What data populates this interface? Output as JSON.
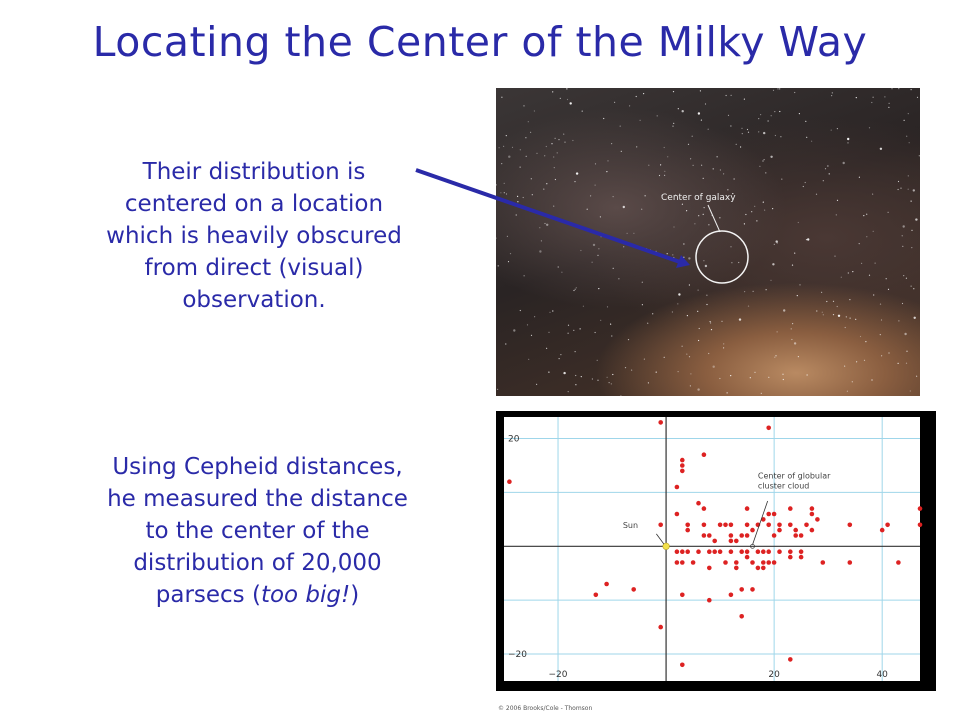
{
  "slide": {
    "title": "Locating the Center of the Milky Way",
    "text1": [
      "Their distribution is",
      "centered on a location",
      "which is heavily obscured",
      "from direct (visual)",
      "observation."
    ],
    "text2": {
      "lines": [
        "Using Cepheid distances,",
        "he measured the distance",
        "to the center of the",
        "distribution of 20,000"
      ],
      "last_prefix": "parsecs (",
      "last_italic": "too big!",
      "last_suffix": ")"
    },
    "text_color": "#2a2aa8"
  },
  "photo": {
    "label": "Center of galaxy"
  },
  "copyright": "© 2006 Brooks/Cole - Thomson",
  "chart_data": {
    "type": "scatter",
    "title": "",
    "xlabel": "",
    "ylabel": "",
    "xlim": [
      -30,
      47
    ],
    "ylim": [
      -25,
      24
    ],
    "x_ticks": [
      -20,
      20,
      40
    ],
    "x_tick_labels": [
      "−20",
      "20",
      "40"
    ],
    "y_ticks": [
      20,
      -20
    ],
    "y_tick_labels": [
      "20",
      "−20"
    ],
    "grid": true,
    "colors": {
      "background": "#000000",
      "plot": "#ffffff",
      "grid": "#9fd6ea",
      "axis": "#333333",
      "points": "#dd2222",
      "sun": "#f2e04a"
    },
    "annotations": [
      {
        "text": [
          "Center of globular",
          "cluster cloud"
        ]
      },
      {
        "text": [
          "Sun"
        ]
      }
    ],
    "sun": {
      "x": 0,
      "y": 0
    },
    "points": [
      [
        -29,
        12
      ],
      [
        -1,
        23
      ],
      [
        19,
        22
      ],
      [
        3,
        16
      ],
      [
        3,
        15
      ],
      [
        3,
        14
      ],
      [
        7,
        17
      ],
      [
        2,
        11
      ],
      [
        6,
        8
      ],
      [
        7,
        7
      ],
      [
        2,
        6
      ],
      [
        -1,
        4
      ],
      [
        15,
        7
      ],
      [
        15,
        4
      ],
      [
        17,
        4
      ],
      [
        19,
        6
      ],
      [
        20,
        6
      ],
      [
        18,
        5
      ],
      [
        23,
        7
      ],
      [
        26,
        4
      ],
      [
        27,
        7
      ],
      [
        27,
        6
      ],
      [
        28,
        5
      ],
      [
        27,
        3
      ],
      [
        24,
        3
      ],
      [
        19,
        4
      ],
      [
        21,
        4
      ],
      [
        16,
        3
      ],
      [
        15,
        2
      ],
      [
        4,
        4
      ],
      [
        4,
        3
      ],
      [
        7,
        4
      ],
      [
        10,
        4
      ],
      [
        11,
        4
      ],
      [
        12,
        4
      ],
      [
        12,
        2
      ],
      [
        14,
        2
      ],
      [
        7,
        2
      ],
      [
        8,
        2
      ],
      [
        9,
        1
      ],
      [
        12,
        1
      ],
      [
        13,
        1
      ],
      [
        20,
        2
      ],
      [
        21,
        3
      ],
      [
        23,
        4
      ],
      [
        24,
        2
      ],
      [
        25,
        2
      ],
      [
        34,
        4
      ],
      [
        40,
        3
      ],
      [
        41,
        4
      ],
      [
        47,
        4
      ],
      [
        47,
        7
      ],
      [
        2,
        -1
      ],
      [
        3,
        -1
      ],
      [
        4,
        -1
      ],
      [
        6,
        -1
      ],
      [
        8,
        -1
      ],
      [
        9,
        -1
      ],
      [
        10,
        -1
      ],
      [
        12,
        -1
      ],
      [
        14,
        -1
      ],
      [
        15,
        -1
      ],
      [
        17,
        -1
      ],
      [
        18,
        -1
      ],
      [
        19,
        -1
      ],
      [
        21,
        -1
      ],
      [
        23,
        -1
      ],
      [
        25,
        -1
      ],
      [
        2,
        -3
      ],
      [
        3,
        -3
      ],
      [
        5,
        -3
      ],
      [
        11,
        -3
      ],
      [
        13,
        -3
      ],
      [
        15,
        -2
      ],
      [
        16,
        -3
      ],
      [
        18,
        -3
      ],
      [
        19,
        -3
      ],
      [
        20,
        -3
      ],
      [
        23,
        -2
      ],
      [
        25,
        -2
      ],
      [
        29,
        -3
      ],
      [
        34,
        -3
      ],
      [
        43,
        -3
      ],
      [
        8,
        -4
      ],
      [
        13,
        -4
      ],
      [
        17,
        -4
      ],
      [
        18,
        -4
      ],
      [
        -11,
        -7
      ],
      [
        -13,
        -9
      ],
      [
        -6,
        -8
      ],
      [
        3,
        -9
      ],
      [
        12,
        -9
      ],
      [
        14,
        -8
      ],
      [
        16,
        -8
      ],
      [
        8,
        -10
      ],
      [
        14,
        -13
      ],
      [
        -1,
        -15
      ],
      [
        3,
        -22
      ],
      [
        23,
        -21
      ]
    ]
  }
}
